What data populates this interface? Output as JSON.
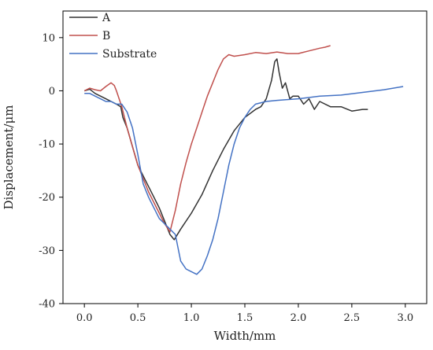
{
  "chart_data": {
    "type": "line",
    "title": "",
    "xlabel": "Width/mm",
    "ylabel": "Displacement/μm",
    "xlim": [
      -0.2,
      3.2
    ],
    "ylim": [
      -40,
      15
    ],
    "x_ticks": [
      0.0,
      0.5,
      1.0,
      1.5,
      2.0,
      2.5,
      3.0
    ],
    "x_tick_labels": [
      "0.0",
      "0.5",
      "1.0",
      "1.5",
      "2.0",
      "2.5",
      "3.0"
    ],
    "y_ticks": [
      -40,
      -30,
      -20,
      -10,
      0,
      10
    ],
    "y_tick_labels": [
      "-40",
      "-30",
      "-20",
      "-10",
      "0",
      "10"
    ],
    "grid": false,
    "legend_position": "top-left",
    "series": [
      {
        "name": "A",
        "color": "#333333",
        "x": [
          0.0,
          0.05,
          0.1,
          0.15,
          0.2,
          0.25,
          0.3,
          0.34,
          0.36,
          0.4,
          0.45,
          0.5,
          0.55,
          0.6,
          0.65,
          0.7,
          0.75,
          0.8,
          0.84,
          0.9,
          1.0,
          1.1,
          1.2,
          1.3,
          1.4,
          1.5,
          1.6,
          1.65,
          1.7,
          1.75,
          1.78,
          1.8,
          1.82,
          1.85,
          1.88,
          1.92,
          1.95,
          2.0,
          2.05,
          2.1,
          2.15,
          2.2,
          2.3,
          2.4,
          2.5,
          2.6,
          2.65
        ],
        "y": [
          0,
          0.3,
          -0.5,
          -1.0,
          -1.5,
          -2.0,
          -2.5,
          -3.0,
          -5.0,
          -7.0,
          -10.5,
          -14.0,
          -16.0,
          -18.0,
          -20.0,
          -22.0,
          -24.5,
          -27.0,
          -28.0,
          -26.0,
          -23.0,
          -19.5,
          -15.0,
          -11.0,
          -7.5,
          -5.0,
          -3.5,
          -3.0,
          -1.5,
          2.0,
          5.5,
          6.0,
          3.5,
          0.5,
          1.5,
          -1.5,
          -1.0,
          -1.0,
          -2.5,
          -1.5,
          -3.5,
          -2.0,
          -3.0,
          -3.0,
          -3.8,
          -3.5,
          -3.5
        ]
      },
      {
        "name": "B",
        "color": "#c0504d",
        "x": [
          0.0,
          0.05,
          0.1,
          0.15,
          0.2,
          0.25,
          0.28,
          0.3,
          0.35,
          0.4,
          0.45,
          0.5,
          0.55,
          0.6,
          0.65,
          0.7,
          0.75,
          0.8,
          0.85,
          0.9,
          0.95,
          1.0,
          1.05,
          1.1,
          1.15,
          1.2,
          1.25,
          1.3,
          1.35,
          1.4,
          1.5,
          1.6,
          1.7,
          1.8,
          1.9,
          2.0,
          2.1,
          2.2,
          2.25,
          2.3
        ],
        "y": [
          0,
          0.5,
          0.2,
          0.0,
          0.8,
          1.5,
          1.0,
          0.0,
          -3.0,
          -7.0,
          -10.5,
          -14.0,
          -16.5,
          -19.0,
          -21.0,
          -23.0,
          -25.0,
          -26.5,
          -22.5,
          -17.5,
          -13.5,
          -10.0,
          -7.0,
          -4.0,
          -1.0,
          1.5,
          4.0,
          6.0,
          6.8,
          6.5,
          6.8,
          7.2,
          7.0,
          7.3,
          7.0,
          7.0,
          7.5,
          8.0,
          8.2,
          8.5
        ]
      },
      {
        "name": "Substrate",
        "color": "#4472c4",
        "x": [
          0.0,
          0.05,
          0.1,
          0.15,
          0.2,
          0.25,
          0.3,
          0.35,
          0.4,
          0.45,
          0.5,
          0.55,
          0.6,
          0.65,
          0.7,
          0.75,
          0.8,
          0.85,
          0.9,
          0.95,
          1.0,
          1.05,
          1.1,
          1.15,
          1.2,
          1.25,
          1.3,
          1.35,
          1.4,
          1.45,
          1.5,
          1.55,
          1.6,
          1.7,
          1.8,
          2.0,
          2.2,
          2.4,
          2.6,
          2.8,
          2.98
        ],
        "y": [
          -0.5,
          -0.5,
          -1.0,
          -1.5,
          -2.0,
          -2.0,
          -2.5,
          -2.5,
          -4.0,
          -7.0,
          -12.0,
          -17.5,
          -20.0,
          -22.0,
          -24.0,
          -25.0,
          -26.0,
          -27.0,
          -32.0,
          -33.5,
          -34.0,
          -34.5,
          -33.5,
          -31.0,
          -28.0,
          -24.0,
          -19.0,
          -14.0,
          -10.0,
          -7.0,
          -5.0,
          -3.5,
          -2.5,
          -2.0,
          -1.8,
          -1.5,
          -1.0,
          -0.8,
          -0.3,
          0.2,
          0.8
        ]
      }
    ]
  }
}
